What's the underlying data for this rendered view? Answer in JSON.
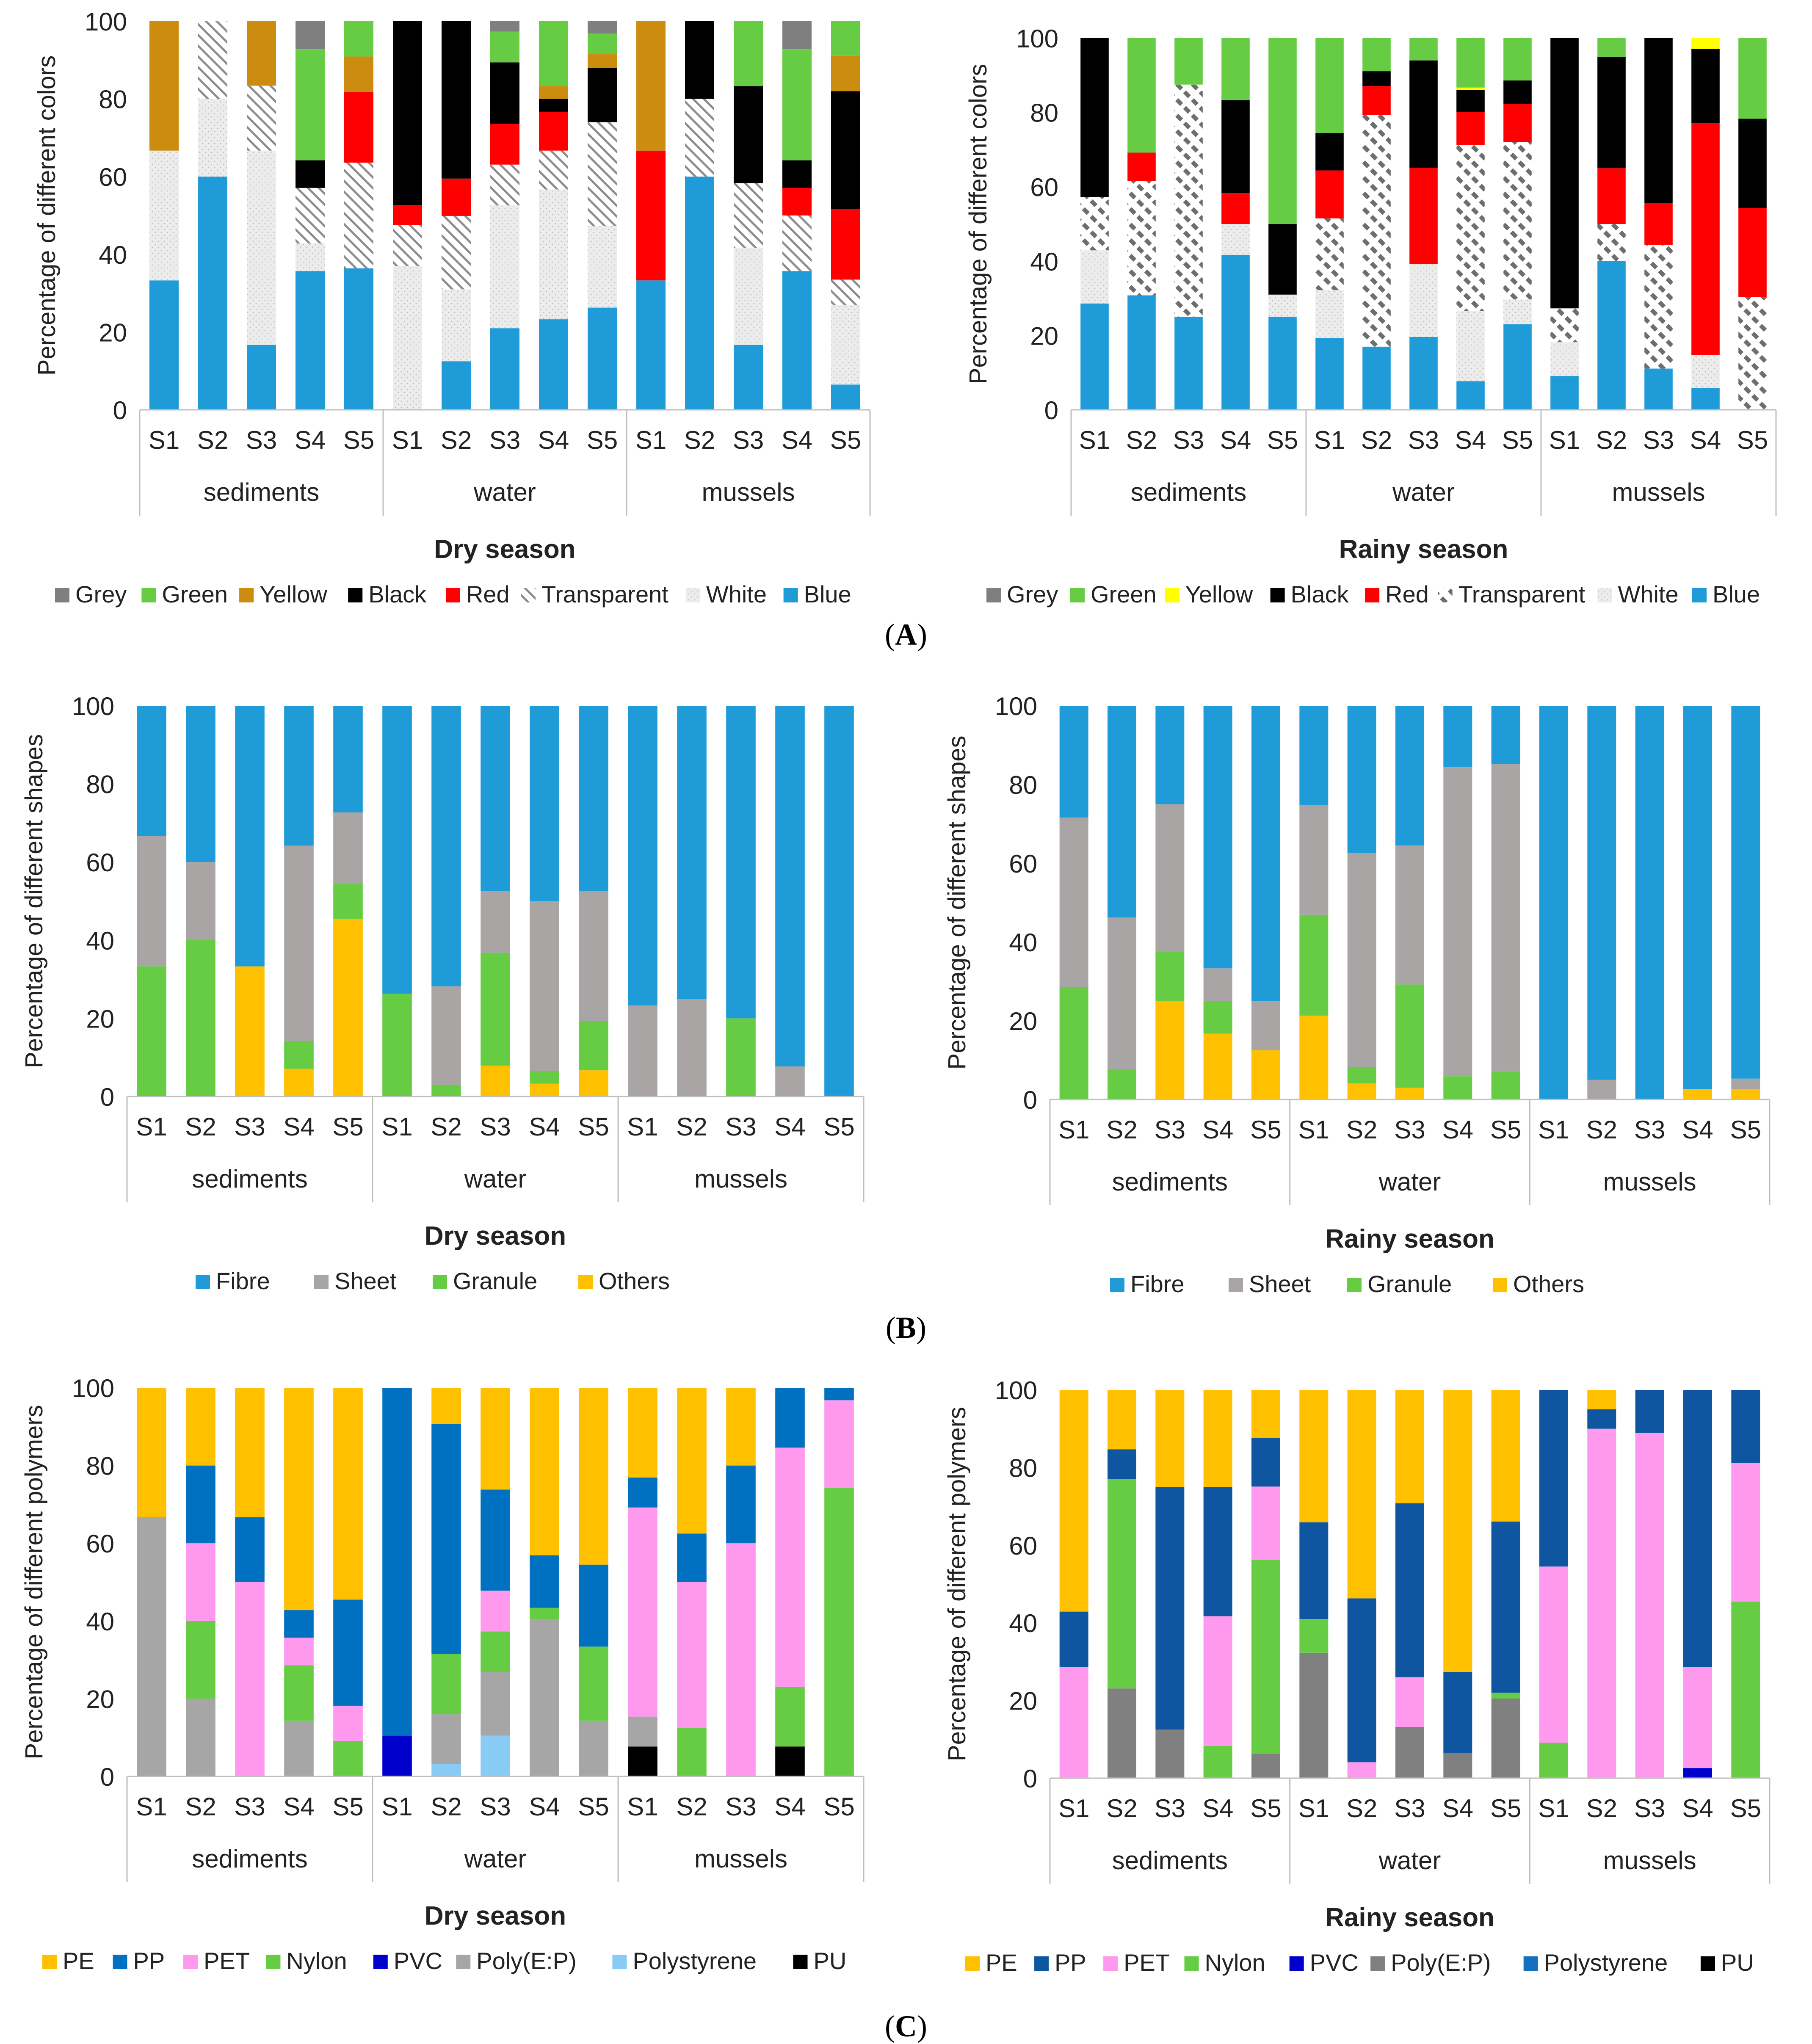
{
  "panel_labels": [
    "A",
    "B",
    "C"
  ],
  "colors": {
    "Grey": "#7f7f7f",
    "Green": "#66cc44",
    "Yellow_dry": "#cc8c10",
    "Yellow_rainy": "#ffff00",
    "Black": "#000000",
    "Red": "#ff0000",
    "Transparent": "#8c8c8c",
    "White": "#e8e8e8",
    "Blue": "#1f9bd8",
    "Fibre": "#1f9bd8",
    "Sheet": "#aaa5a5",
    "Granule": "#66cc44",
    "Others": "#ffc000",
    "PE": "#ffc000",
    "PP_dry": "#0070c0",
    "PP_rainy": "#0f56a0",
    "PET": "#ff99ee",
    "Nylon": "#66cc44",
    "PVC": "#0000cc",
    "PolyEP_dry": "#a6a6a6",
    "PolyEP_rainy": "#808080",
    "Polystyrene_dry": "#88ccf5",
    "Polystyrene_rainy": "#1570c0",
    "PU": "#000000"
  },
  "chart_data": [
    {
      "id": "A-dry",
      "type": "bar",
      "stacked": true,
      "title": "Dry season",
      "xlabel": "",
      "ylabel": "Percentage of different colors",
      "ylim": [
        0,
        100
      ],
      "yticks": [
        0,
        20,
        40,
        60,
        80,
        100
      ],
      "groups": [
        "sediments",
        "water",
        "mussels"
      ],
      "categories": [
        "S1",
        "S2",
        "S3",
        "S4",
        "S5",
        "S1",
        "S2",
        "S3",
        "S4",
        "S5",
        "S1",
        "S2",
        "S3",
        "S4",
        "S5"
      ],
      "legend": [
        "Grey",
        "Green",
        "Yellow",
        "Black",
        "Red",
        "Transparent",
        "White",
        "Blue"
      ],
      "series": [
        {
          "name": "Blue",
          "color": "#1f9bd8",
          "values": [
            33.3,
            60,
            16.7,
            35.7,
            36.4,
            0,
            12.5,
            21,
            23.3,
            26.3,
            33.3,
            60,
            16.7,
            35.7,
            6.5
          ]
        },
        {
          "name": "White",
          "color": "#eeeeee",
          "pattern": "dots",
          "values": [
            33.4,
            20,
            50,
            7.1,
            0,
            37,
            18.5,
            31.6,
            33.4,
            21,
            0,
            0,
            25,
            0,
            20.5
          ]
        },
        {
          "name": "Transparent",
          "color": "#8c8c8c",
          "pattern": "hatch",
          "values": [
            0,
            20,
            16.7,
            14.3,
            27.2,
            10.5,
            18.9,
            10.5,
            10,
            26.7,
            0,
            20,
            16.6,
            14.3,
            6.5
          ]
        },
        {
          "name": "Red",
          "color": "#ff0000",
          "values": [
            0,
            0,
            0,
            0,
            18.2,
            5.2,
            9.6,
            10.5,
            10,
            0,
            33.4,
            0,
            0,
            7.1,
            18.2
          ]
        },
        {
          "name": "Black",
          "color": "#000000",
          "values": [
            0,
            0,
            0,
            7.1,
            0,
            47.3,
            40.5,
            15.8,
            3.3,
            14,
            0,
            20,
            25,
            7.1,
            30.3
          ]
        },
        {
          "name": "Yellow",
          "color": "#cc8c10",
          "values": [
            33.3,
            0,
            16.6,
            0,
            9.1,
            0,
            0,
            0,
            3.3,
            3.5,
            33.3,
            0,
            0,
            0,
            9.1
          ]
        },
        {
          "name": "Green",
          "color": "#66cc44",
          "values": [
            0,
            0,
            0,
            28.6,
            9.1,
            0,
            0,
            7.9,
            16.7,
            5.3,
            0,
            0,
            16.7,
            28.6,
            8.9
          ]
        },
        {
          "name": "Grey",
          "color": "#7f7f7f",
          "values": [
            0,
            0,
            0,
            7.2,
            0,
            0,
            0,
            2.7,
            0,
            3.2,
            0,
            0,
            0,
            7.2,
            0
          ]
        }
      ]
    },
    {
      "id": "A-rainy",
      "type": "bar",
      "stacked": true,
      "title": "Rainy season",
      "xlabel": "",
      "ylabel": "Percentage of different colors",
      "ylim": [
        0,
        100
      ],
      "yticks": [
        0,
        20,
        40,
        60,
        80,
        100
      ],
      "groups": [
        "sediments",
        "water",
        "mussels"
      ],
      "categories": [
        "S1",
        "S2",
        "S3",
        "S4",
        "S5",
        "S1",
        "S2",
        "S3",
        "S4",
        "S5",
        "S1",
        "S2",
        "S3",
        "S4",
        "S5"
      ],
      "legend": [
        "Grey",
        "Green",
        "Yellow",
        "Black",
        "Red",
        "Transparent",
        "White",
        "Blue"
      ],
      "series": [
        {
          "name": "Blue",
          "color": "#1f9bd8",
          "values": [
            28.6,
            30.8,
            25,
            41.7,
            25,
            19.3,
            17,
            19.6,
            7.7,
            23,
            9.1,
            40,
            11.1,
            5.9,
            0
          ]
        },
        {
          "name": "White",
          "color": "#d8d8d8",
          "pattern": "dots",
          "values": [
            14.3,
            0,
            0,
            8.3,
            6,
            12.9,
            0,
            19.6,
            18.9,
            6.7,
            9.1,
            0,
            0,
            8.8,
            0
          ]
        },
        {
          "name": "Transparent",
          "color": "#808080",
          "pattern": "dashes",
          "values": [
            14.3,
            30.8,
            62.5,
            0,
            0,
            19.3,
            62.3,
            0,
            44.7,
            42.3,
            9.1,
            10,
            33.3,
            0,
            30.3
          ]
        },
        {
          "name": "Red",
          "color": "#ff0000",
          "values": [
            0,
            7.6,
            0,
            8.3,
            0,
            12.9,
            7.8,
            25.9,
            8.8,
            10.3,
            0,
            15,
            11.2,
            62.4,
            24
          ]
        },
        {
          "name": "Black",
          "color": "#000000",
          "values": [
            42.8,
            0,
            0,
            25,
            19,
            10.1,
            4,
            28.9,
            5.9,
            6.3,
            72.7,
            30,
            44.4,
            20,
            24
          ]
        },
        {
          "name": "Yellow",
          "color": "#ffff00",
          "values": [
            0,
            0,
            0,
            0,
            0,
            0,
            0,
            0,
            0.7,
            0,
            0,
            0,
            0,
            3,
            0
          ]
        },
        {
          "name": "Green",
          "color": "#66cc44",
          "values": [
            0,
            30.8,
            12.5,
            16.7,
            50,
            25.5,
            8.9,
            6,
            13.3,
            11.4,
            0,
            5,
            0,
            0,
            21.7
          ]
        },
        {
          "name": "Grey",
          "color": "#7f7f7f",
          "values": [
            0,
            0,
            0,
            0,
            0,
            0,
            0,
            0,
            0,
            0,
            0,
            0,
            0,
            0,
            0
          ]
        }
      ]
    },
    {
      "id": "B-dry",
      "type": "bar",
      "stacked": true,
      "title": "Dry season",
      "xlabel": "",
      "ylabel": "Percentage of different shapes",
      "ylim": [
        0,
        100
      ],
      "yticks": [
        0,
        20,
        40,
        60,
        80,
        100
      ],
      "groups": [
        "sediments",
        "water",
        "mussels"
      ],
      "categories": [
        "S1",
        "S2",
        "S3",
        "S4",
        "S5",
        "S1",
        "S2",
        "S3",
        "S4",
        "S5",
        "S1",
        "S2",
        "S3",
        "S4",
        "S5"
      ],
      "legend": [
        "Fibre",
        "Sheet",
        "Granule",
        "Others"
      ],
      "series": [
        {
          "name": "Others",
          "color": "#ffc000",
          "values": [
            0,
            0,
            33.3,
            7.1,
            45.5,
            0,
            0,
            7.9,
            3.3,
            6.7,
            0,
            0,
            0,
            0,
            0
          ]
        },
        {
          "name": "Granule",
          "color": "#66cc44",
          "values": [
            33.3,
            40,
            0,
            7.1,
            9,
            26.3,
            3,
            28.9,
            3.3,
            12.6,
            0,
            0,
            20,
            0,
            0
          ]
        },
        {
          "name": "Sheet",
          "color": "#aaa5a5",
          "values": [
            33.4,
            20,
            0,
            50,
            18.2,
            0,
            25.2,
            15.8,
            43.4,
            33.3,
            23.3,
            25,
            0,
            7.7,
            0
          ]
        },
        {
          "name": "Fibre",
          "color": "#1f9bd8",
          "values": [
            33.3,
            40,
            66.7,
            35.8,
            27.3,
            73.7,
            71.8,
            47.4,
            50,
            47.4,
            76.7,
            75,
            80,
            92.3,
            100
          ]
        }
      ]
    },
    {
      "id": "B-rainy",
      "type": "bar",
      "stacked": true,
      "title": "Rainy season",
      "xlabel": "",
      "ylabel": "Percentage of different shapes",
      "ylim": [
        0,
        100
      ],
      "yticks": [
        0,
        20,
        40,
        60,
        80,
        100
      ],
      "groups": [
        "sediments",
        "water",
        "mussels"
      ],
      "categories": [
        "S1",
        "S2",
        "S3",
        "S4",
        "S5",
        "S1",
        "S2",
        "S3",
        "S4",
        "S5",
        "S1",
        "S2",
        "S3",
        "S4",
        "S5"
      ],
      "legend": [
        "Fibre",
        "Sheet",
        "Granule",
        "Others"
      ],
      "series": [
        {
          "name": "Others",
          "color": "#ffc000",
          "values": [
            0,
            0,
            25,
            16.7,
            12.5,
            21.3,
            4.1,
            3,
            0,
            0,
            0,
            0,
            0,
            2.6,
            2.6
          ]
        },
        {
          "name": "Granule",
          "color": "#66cc44",
          "values": [
            28.6,
            7.7,
            12.5,
            8.3,
            0,
            25.6,
            4.1,
            26.2,
            5.9,
            7,
            0,
            0,
            0,
            0,
            0
          ]
        },
        {
          "name": "Sheet",
          "color": "#aaa5a5",
          "values": [
            43,
            38.5,
            37.5,
            8.3,
            12.5,
            27.8,
            54.4,
            35.3,
            78.5,
            78.2,
            0,
            5,
            0,
            0,
            2.7
          ]
        },
        {
          "name": "Fibre",
          "color": "#1f9bd8",
          "values": [
            28.4,
            53.8,
            25,
            66.7,
            75,
            25.3,
            37.4,
            35.5,
            15.6,
            14.8,
            100,
            95,
            100,
            97.4,
            94.7
          ]
        }
      ]
    },
    {
      "id": "C-dry",
      "type": "bar",
      "stacked": true,
      "title": "Dry season",
      "xlabel": "",
      "ylabel": "Percentage of different polymers",
      "ylim": [
        0,
        100
      ],
      "yticks": [
        0,
        20,
        40,
        60,
        80,
        100
      ],
      "groups": [
        "sediments",
        "water",
        "mussels"
      ],
      "categories": [
        "S1",
        "S2",
        "S3",
        "S4",
        "S5",
        "S1",
        "S2",
        "S3",
        "S4",
        "S5",
        "S1",
        "S2",
        "S3",
        "S4",
        "S5"
      ],
      "legend": [
        "PE",
        "PP",
        "PET",
        "Nylon",
        "PVC",
        "Poly(E:P)",
        "Polystyrene",
        "PU"
      ],
      "series": [
        {
          "name": "PU",
          "color": "#000000",
          "values": [
            0,
            0,
            0,
            0,
            0,
            0,
            0,
            0,
            0,
            0,
            7.7,
            0,
            0,
            7.7,
            0
          ]
        },
        {
          "name": "PVC",
          "color": "#0000cc",
          "values": [
            0,
            0,
            0,
            0,
            0,
            10.5,
            0,
            0,
            0,
            0,
            0,
            0,
            0,
            0,
            0
          ]
        },
        {
          "name": "Polystyrene",
          "color": "#88ccf5",
          "values": [
            0,
            0,
            0,
            0,
            0,
            0,
            3.2,
            10.5,
            0,
            0,
            0,
            0,
            0,
            0,
            0
          ]
        },
        {
          "name": "Poly(E:P)",
          "color": "#a6a6a6",
          "values": [
            66.7,
            20,
            0,
            14.3,
            0,
            0,
            12.8,
            16.3,
            40.5,
            14.3,
            7.7,
            0,
            0,
            0,
            0
          ]
        },
        {
          "name": "Nylon",
          "color": "#66cc44",
          "values": [
            0,
            20,
            0,
            14.3,
            9.1,
            0,
            15.5,
            10.5,
            2.9,
            19.1,
            0,
            12.5,
            0,
            15.4,
            74.2
          ]
        },
        {
          "name": "PET",
          "color": "#ff99ee",
          "values": [
            0,
            20,
            50,
            7.1,
            9.1,
            0,
            0,
            10.5,
            0,
            0,
            53.8,
            37.5,
            60,
            61.5,
            22.6
          ]
        },
        {
          "name": "PP",
          "color": "#0070c0",
          "values": [
            0,
            20,
            16.7,
            7.1,
            27.3,
            89.5,
            59.2,
            26,
            13.5,
            21.1,
            7.7,
            12.5,
            20,
            15.4,
            3.2
          ]
        },
        {
          "name": "PE",
          "color": "#ffc000",
          "values": [
            33.3,
            20,
            33.3,
            57.2,
            54.5,
            0,
            9.3,
            26.2,
            43.1,
            45.5,
            23.1,
            37.5,
            20,
            0,
            0
          ]
        }
      ]
    },
    {
      "id": "C-rainy",
      "type": "bar",
      "stacked": true,
      "title": "Rainy season",
      "xlabel": "",
      "ylabel": "Percentage of different polymers",
      "ylim": [
        0,
        100
      ],
      "yticks": [
        0,
        20,
        40,
        60,
        80,
        100
      ],
      "groups": [
        "sediments",
        "water",
        "mussels"
      ],
      "categories": [
        "S1",
        "S2",
        "S3",
        "S4",
        "S5",
        "S1",
        "S2",
        "S3",
        "S4",
        "S5",
        "S1",
        "S2",
        "S3",
        "S4",
        "S5"
      ],
      "legend": [
        "PE",
        "PP",
        "PET",
        "Nylon",
        "PVC",
        "Poly(E:P)",
        "Polystyrene",
        "PU"
      ],
      "series": [
        {
          "name": "PU",
          "color": "#000000",
          "values": [
            0,
            0,
            0,
            0,
            0,
            0,
            0,
            0,
            0,
            0,
            0,
            0,
            0,
            0,
            0
          ]
        },
        {
          "name": "PVC",
          "color": "#0000cc",
          "values": [
            0,
            0,
            0,
            0,
            0,
            0,
            0,
            0,
            0,
            0,
            0,
            0,
            0,
            2.6,
            0
          ]
        },
        {
          "name": "Poly(E:P)",
          "color": "#808080",
          "values": [
            0,
            23.1,
            12.5,
            0,
            6.3,
            32.3,
            0,
            13.2,
            6.5,
            20.5,
            0,
            0,
            0,
            0,
            0
          ]
        },
        {
          "name": "Nylon",
          "color": "#66cc44",
          "values": [
            0,
            53.9,
            0,
            8.3,
            50,
            8.7,
            0,
            0,
            0,
            1.5,
            9.1,
            0,
            0,
            0,
            45.5
          ]
        },
        {
          "name": "PET",
          "color": "#ff99ee",
          "values": [
            28.6,
            0,
            0,
            33.4,
            18.8,
            0,
            4.1,
            12.8,
            0,
            0,
            45.4,
            90,
            88.9,
            26,
            35.7
          ]
        },
        {
          "name": "Polystyrene",
          "color": "#1570c0",
          "values": [
            0,
            0,
            0,
            0,
            0,
            0,
            0,
            0,
            0,
            0,
            0,
            0,
            0,
            0,
            0
          ]
        },
        {
          "name": "PP",
          "color": "#0f56a0",
          "values": [
            14.3,
            7.7,
            62.5,
            33.3,
            12.5,
            24.9,
            42.2,
            44.8,
            20.8,
            44.1,
            45.5,
            5,
            11.1,
            71.4,
            18.8
          ]
        },
        {
          "name": "PE",
          "color": "#ffc000",
          "values": [
            57.1,
            15.3,
            25,
            25,
            12.4,
            34.1,
            53.7,
            29.2,
            72.7,
            33.9,
            0,
            5,
            0,
            0,
            0
          ]
        }
      ]
    }
  ]
}
